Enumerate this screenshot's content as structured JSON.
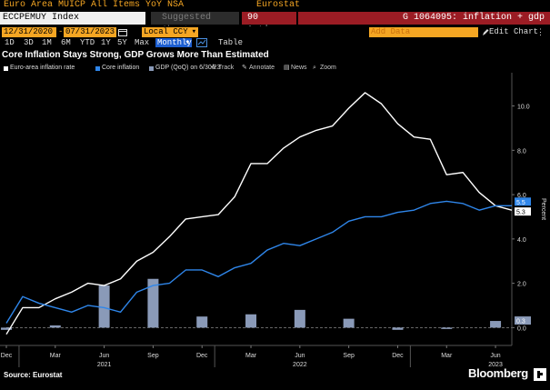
{
  "title_bar": {
    "series_name": "Euro Area MUICP All Items YoY NSA",
    "source": "Eurostat"
  },
  "ticker_row": {
    "ticker": "ECCPEMUY Index",
    "suggested_charts": "Suggested Charts",
    "actions": "90 Actions",
    "graph_id": "G 1064095: inflation + gdp"
  },
  "date_row": {
    "start": "12/31/2020",
    "separator": "-",
    "end": "07/31/2023",
    "currency": "Local CCY",
    "add_data_placeholder": "Add Data",
    "edit_chart": "Edit Chart"
  },
  "periods": [
    "1D",
    "3D",
    "1M",
    "6M",
    "YTD",
    "1Y",
    "5Y",
    "Max"
  ],
  "frequency": "Monthly",
  "table_label": "Table",
  "chart_title": "Core Inflation Stays Strong, GDP Grows More Than Estimated",
  "legend": {
    "items": [
      {
        "label": "Euro-area inflation rate",
        "color": "#ffffff"
      },
      {
        "label": "Core inflation",
        "color": "#2f86ea"
      },
      {
        "label": "GDP (QoQ) on 6/30/23",
        "color": "#8a9ab8"
      }
    ]
  },
  "chart_tools": [
    "Track",
    "Annotate",
    "News",
    "Zoom"
  ],
  "chart_data": {
    "type": "line",
    "y_axis": {
      "label": "Percent",
      "ticks": [
        "0.0",
        "2.0",
        "4.0",
        "6.0",
        "8.0",
        "10.0"
      ],
      "ylim": [
        -0.6,
        11.5
      ]
    },
    "x_axis": {
      "month_labels": [
        "Dec",
        "Mar",
        "Jun",
        "Sep",
        "Dec",
        "Mar",
        "Jun",
        "Sep",
        "Dec",
        "Mar",
        "Jun"
      ],
      "year_labels": [
        "2021",
        "2022",
        "2023"
      ]
    },
    "series": [
      {
        "name": "Euro-area inflation rate",
        "color": "#ffffff",
        "x": [
          "2020-12",
          "2021-01",
          "2021-02",
          "2021-03",
          "2021-04",
          "2021-05",
          "2021-06",
          "2021-07",
          "2021-08",
          "2021-09",
          "2021-10",
          "2021-11",
          "2021-12",
          "2022-01",
          "2022-02",
          "2022-03",
          "2022-04",
          "2022-05",
          "2022-06",
          "2022-07",
          "2022-08",
          "2022-09",
          "2022-10",
          "2022-11",
          "2022-12",
          "2023-01",
          "2023-02",
          "2023-03",
          "2023-04",
          "2023-05",
          "2023-06",
          "2023-07"
        ],
        "values": [
          -0.3,
          0.9,
          0.9,
          1.3,
          1.6,
          2.0,
          1.9,
          2.2,
          3.0,
          3.4,
          4.1,
          4.9,
          5.0,
          5.1,
          5.9,
          7.4,
          7.4,
          8.1,
          8.6,
          8.9,
          9.1,
          9.9,
          10.6,
          10.1,
          9.2,
          8.6,
          8.5,
          6.9,
          7.0,
          6.1,
          5.5,
          5.3
        ]
      },
      {
        "name": "Core inflation",
        "color": "#2f86ea",
        "x": [
          "2020-12",
          "2021-01",
          "2021-02",
          "2021-03",
          "2021-04",
          "2021-05",
          "2021-06",
          "2021-07",
          "2021-08",
          "2021-09",
          "2021-10",
          "2021-11",
          "2021-12",
          "2022-01",
          "2022-02",
          "2022-03",
          "2022-04",
          "2022-05",
          "2022-06",
          "2022-07",
          "2022-08",
          "2022-09",
          "2022-10",
          "2022-11",
          "2022-12",
          "2023-01",
          "2023-02",
          "2023-03",
          "2023-04",
          "2023-05",
          "2023-06",
          "2023-07"
        ],
        "values": [
          0.2,
          1.4,
          1.1,
          0.9,
          0.7,
          1.0,
          0.9,
          0.7,
          1.6,
          1.9,
          2.0,
          2.6,
          2.6,
          2.3,
          2.7,
          2.9,
          3.5,
          3.8,
          3.7,
          4.0,
          4.3,
          4.8,
          5.0,
          5.0,
          5.2,
          5.3,
          5.6,
          5.7,
          5.6,
          5.3,
          5.5,
          5.5
        ]
      },
      {
        "name": "GDP (QoQ) on 6/30/23",
        "color": "#8a9ab8",
        "x": [
          "2020-12",
          "2021-03",
          "2021-06",
          "2021-09",
          "2021-12",
          "2022-03",
          "2022-06",
          "2022-09",
          "2022-12",
          "2023-03",
          "2023-06"
        ],
        "values": [
          -0.1,
          0.1,
          1.9,
          2.2,
          0.5,
          0.6,
          0.8,
          0.4,
          -0.1,
          0.0,
          0.3
        ]
      }
    ],
    "end_labels": [
      {
        "series": "Euro-area inflation rate",
        "value": "5.3"
      },
      {
        "series": "Core inflation",
        "value": "5.5"
      },
      {
        "series": "GDP (QoQ) on 6/30/23",
        "value": "0.3"
      }
    ]
  },
  "footer": {
    "source": "Source: Eurostat",
    "brand": "Bloomberg"
  }
}
